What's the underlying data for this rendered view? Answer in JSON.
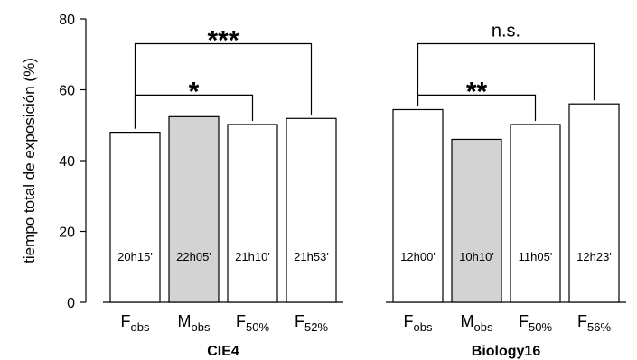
{
  "chart_data": {
    "type": "bar",
    "ylabel": "tiempo total de exposición (%)",
    "ylim": [
      0,
      80
    ],
    "yticks": [
      "0",
      "20",
      "40",
      "60",
      "80"
    ],
    "groups": [
      {
        "name": "CIE4",
        "bars": [
          {
            "label": "F",
            "sub": "obs",
            "value": 48.0,
            "annotation": "20h15'",
            "fill": "#ffffff"
          },
          {
            "label": "M",
            "sub": "obs",
            "value": 52.4,
            "annotation": "22h05'",
            "fill": "#d3d3d3"
          },
          {
            "label": "F",
            "sub": "50%",
            "value": 50.2,
            "annotation": "21h10'",
            "fill": "#ffffff"
          },
          {
            "label": "F",
            "sub": "52%",
            "value": 51.9,
            "annotation": "21h53'",
            "fill": "#ffffff"
          }
        ],
        "comparisons": [
          {
            "from": 0,
            "to": 3,
            "level": 73.0,
            "label": "***"
          },
          {
            "from": 0,
            "to": 2,
            "level": 58.5,
            "label": "*"
          }
        ]
      },
      {
        "name": "Biology16",
        "bars": [
          {
            "label": "F",
            "sub": "obs",
            "value": 54.4,
            "annotation": "12h00'",
            "fill": "#ffffff"
          },
          {
            "label": "M",
            "sub": "obs",
            "value": 46.0,
            "annotation": "10h10'",
            "fill": "#d3d3d3"
          },
          {
            "label": "F",
            "sub": "50%",
            "value": 50.2,
            "annotation": "11h05'",
            "fill": "#ffffff"
          },
          {
            "label": "F",
            "sub": "56%",
            "value": 56.0,
            "annotation": "12h23'",
            "fill": "#ffffff"
          }
        ],
        "comparisons": [
          {
            "from": 0,
            "to": 3,
            "level": 73.0,
            "label": "n.s."
          },
          {
            "from": 0,
            "to": 2,
            "level": 58.5,
            "label": "**"
          }
        ]
      }
    ]
  }
}
